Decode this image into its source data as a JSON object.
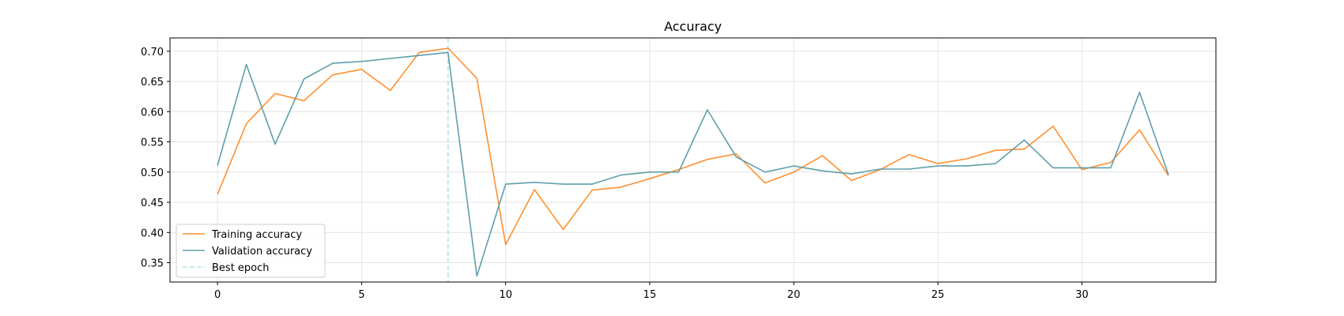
{
  "chart_data": {
    "type": "line",
    "title": "Accuracy",
    "xlabel": "",
    "ylabel": "",
    "xlim": [
      -1.65,
      34.65
    ],
    "ylim": [
      0.318,
      0.722
    ],
    "x_ticks": [
      0,
      5,
      10,
      15,
      20,
      25,
      30
    ],
    "y_ticks": [
      0.35,
      0.4,
      0.45,
      0.5,
      0.55,
      0.6,
      0.65,
      0.7
    ],
    "y_tick_labels": [
      "0.35",
      "0.40",
      "0.45",
      "0.50",
      "0.55",
      "0.60",
      "0.65",
      "0.70"
    ],
    "grid": true,
    "legend_position": "lower-left",
    "x": [
      0,
      1,
      2,
      3,
      4,
      5,
      6,
      7,
      8,
      9,
      10,
      11,
      12,
      13,
      14,
      15,
      16,
      17,
      18,
      19,
      20,
      21,
      22,
      23,
      24,
      25,
      26,
      27,
      28,
      29,
      30,
      31,
      32,
      33
    ],
    "series": [
      {
        "name": "Training accuracy",
        "color": "#ff9030",
        "values": [
          0.463,
          0.58,
          0.63,
          0.618,
          0.661,
          0.67,
          0.635,
          0.698,
          0.705,
          0.655,
          0.38,
          0.471,
          0.405,
          0.47,
          0.475,
          0.489,
          0.504,
          0.521,
          0.53,
          0.482,
          0.5,
          0.527,
          0.486,
          0.504,
          0.529,
          0.514,
          0.522,
          0.536,
          0.538,
          0.576,
          0.504,
          0.516,
          0.57,
          0.494
        ]
      },
      {
        "name": "Validation accuracy",
        "color": "#5f9fab",
        "values": [
          0.511,
          0.678,
          0.546,
          0.654,
          0.68,
          0.683,
          0.688,
          0.693,
          0.698,
          0.328,
          0.48,
          0.483,
          0.48,
          0.48,
          0.495,
          0.5,
          0.5,
          0.603,
          0.525,
          0.5,
          0.51,
          0.502,
          0.497,
          0.505,
          0.505,
          0.51,
          0.51,
          0.514,
          0.553,
          0.507,
          0.507,
          0.507,
          0.632,
          0.496
        ]
      }
    ],
    "best_epoch": {
      "name": "Best epoch",
      "x": 8,
      "color": "#b0e0e0"
    }
  }
}
